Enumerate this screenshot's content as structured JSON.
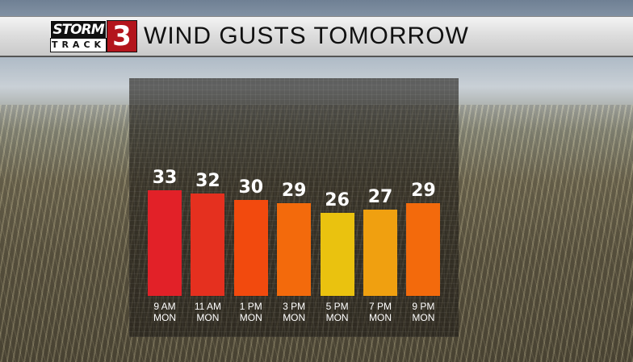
{
  "header": {
    "logo_top": "STORM",
    "logo_bottom": "TRACK",
    "logo_number": "3",
    "title": "WIND GUSTS TOMORROW"
  },
  "chart_data": {
    "type": "bar",
    "title": "WIND GUSTS TOMORROW",
    "categories": [
      [
        "9 AM",
        "MON"
      ],
      [
        "11 AM",
        "MON"
      ],
      [
        "1 PM",
        "MON"
      ],
      [
        "3 PM",
        "MON"
      ],
      [
        "5 PM",
        "MON"
      ],
      [
        "7 PM",
        "MON"
      ],
      [
        "9 PM",
        "MON"
      ]
    ],
    "values": [
      33,
      32,
      30,
      29,
      26,
      27,
      29
    ],
    "colors": [
      "#e22128",
      "#e5301f",
      "#f24a0e",
      "#f36a0c",
      "#eac20f",
      "#f0a010",
      "#f36a0c"
    ],
    "ylim": [
      0,
      35
    ],
    "grid": false
  }
}
